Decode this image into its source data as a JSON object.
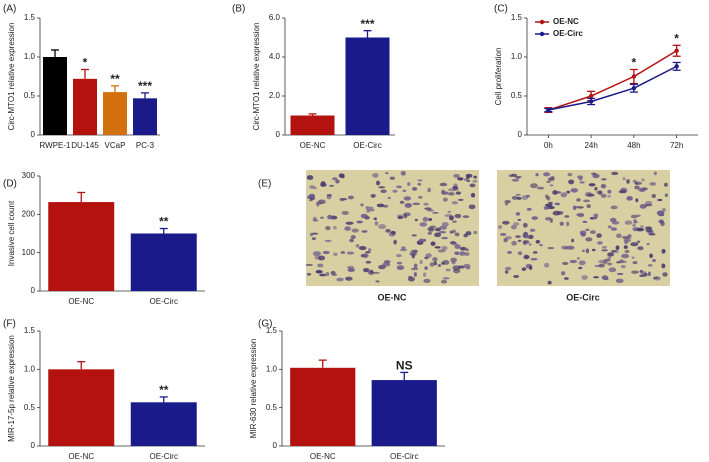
{
  "chart_data": [
    {
      "type": "bar",
      "label": "(A)",
      "ylabel": "Circ-MTO1 relative expression",
      "categories": [
        "RWPE-1",
        "DU-145",
        "VCaP",
        "PC-3"
      ],
      "values": [
        1.0,
        0.72,
        0.55,
        0.47
      ],
      "errors": [
        0.09,
        0.12,
        0.08,
        0.07
      ],
      "colors": [
        "#000000",
        "#b3120f",
        "#d2700f",
        "#1a1a8a"
      ],
      "annotations": [
        null,
        "*",
        "**",
        "***"
      ],
      "ylim": [
        0,
        1.5
      ],
      "yticks": [
        0,
        0.5,
        {
          "value": 1,
          "label": "1.0"
        },
        1.5
      ]
    },
    {
      "type": "bar",
      "label": "(B)",
      "ylabel": "Circ-MTO1 relative expression",
      "categories": [
        "OE-NC",
        "OE-Circ"
      ],
      "values": [
        1.0,
        5.0
      ],
      "errors": [
        0.08,
        0.35
      ],
      "colors": [
        "#b3120f",
        "#1a1a8a"
      ],
      "annotations": [
        null,
        "***"
      ],
      "ylim": [
        0,
        6
      ],
      "yticks": [
        0,
        {
          "value": 2,
          "label": "2.0"
        },
        {
          "value": 4,
          "label": "4.0"
        },
        {
          "value": 6,
          "label": "6.0"
        }
      ]
    },
    {
      "type": "line",
      "label": "(C)",
      "ylabel": "Cell proliferation",
      "categories": [
        "0h",
        "24h",
        "48h",
        "72h"
      ],
      "series": [
        {
          "name": "OE-NC",
          "color": "#b3120f",
          "values": [
            0.32,
            0.5,
            0.75,
            1.08
          ],
          "errors": [
            0.03,
            0.06,
            0.09,
            0.07
          ]
        },
        {
          "name": "OE-Circ",
          "color": "#1a1a8a",
          "values": [
            0.32,
            0.43,
            0.6,
            0.88
          ],
          "errors": [
            0.02,
            0.04,
            0.05,
            0.05
          ]
        }
      ],
      "annotations": [
        null,
        null,
        "*",
        "*"
      ],
      "legend": "upper left",
      "ylim": [
        0,
        1.5
      ],
      "yticks": [
        0,
        0.5,
        {
          "value": 1,
          "label": "1.0"
        },
        1.5
      ]
    },
    {
      "type": "bar",
      "label": "(D)",
      "ylabel": "Invasive cell count",
      "categories": [
        "OE-NC",
        "OE-Circ"
      ],
      "values": [
        232,
        150
      ],
      "errors": [
        25,
        13
      ],
      "colors": [
        "#b3120f",
        "#1a1a8a"
      ],
      "annotations": [
        null,
        "**"
      ],
      "ylim": [
        0,
        300
      ],
      "yticks": [
        0,
        100,
        200,
        300
      ]
    },
    {
      "type": "bar",
      "label": "(F)",
      "ylabel": "MIR-17-5p relative expression",
      "categories": [
        "OE-NC",
        "OE-Circ"
      ],
      "values": [
        1.0,
        0.57
      ],
      "errors": [
        0.1,
        0.07
      ],
      "colors": [
        "#b3120f",
        "#1a1a8a"
      ],
      "annotations": [
        null,
        "**"
      ],
      "ylim": [
        0,
        1.5
      ],
      "yticks": [
        0,
        0.5,
        {
          "value": 1,
          "label": "1.0"
        },
        1.5
      ]
    },
    {
      "type": "bar",
      "label": "(G)",
      "ylabel": "MIR-630 relative expression",
      "categories": [
        "OE-NC",
        "OE-Circ"
      ],
      "values": [
        1.02,
        0.86
      ],
      "errors": [
        0.1,
        0.1
      ],
      "colors": [
        "#b3120f",
        "#1a1a8a"
      ],
      "annotations": [
        null,
        "NS"
      ],
      "ylim": [
        0,
        1.5
      ],
      "yticks": [
        0,
        0.5,
        {
          "value": 1,
          "label": "1.0"
        },
        1.5
      ]
    }
  ],
  "images": {
    "label": "(E)",
    "captions": [
      "OE-NC",
      "OE-Circ"
    ]
  }
}
